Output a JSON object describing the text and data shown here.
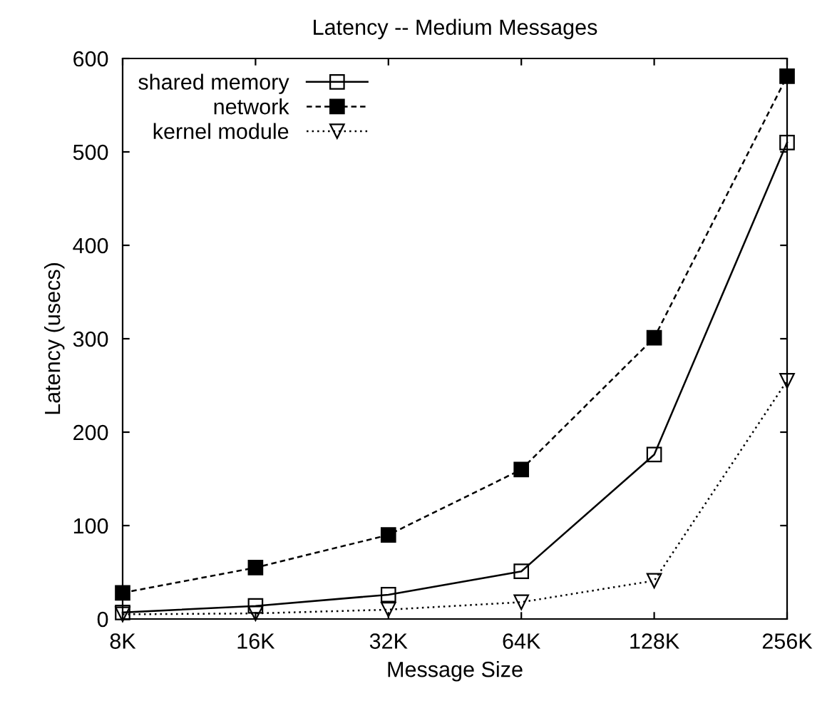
{
  "chart_data": {
    "type": "line",
    "title": "Latency -- Medium Messages",
    "xlabel": "Message Size",
    "ylabel": "Latency (usecs)",
    "categories": [
      "8K",
      "16K",
      "32K",
      "64K",
      "128K",
      "256K"
    ],
    "series": [
      {
        "name": "shared memory",
        "color": "#000000",
        "marker": "square",
        "line_style": "solid",
        "values": [
          7,
          14,
          26,
          51,
          176,
          510
        ]
      },
      {
        "name": "network",
        "color": "#000000",
        "marker": "square",
        "line_style": "dashed",
        "values": [
          28,
          55,
          90,
          160,
          301,
          581
        ]
      },
      {
        "name": "kernel module",
        "color": "#000000",
        "marker": "triangle",
        "line_style": "dotted",
        "values": [
          5,
          6,
          10,
          18,
          41,
          255
        ]
      }
    ],
    "ylim": [
      0,
      600
    ],
    "yticks": [
      0,
      100,
      200,
      300,
      400,
      500,
      600
    ],
    "grid": false,
    "legend": "top left"
  }
}
